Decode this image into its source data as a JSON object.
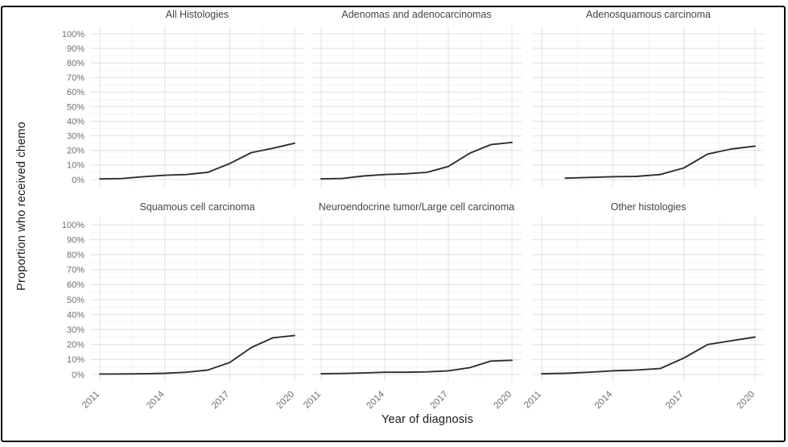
{
  "figure": {
    "description": "Faceted line chart of chemotherapy receipt over time by tumor histology",
    "background": "#ffffff",
    "border_color": "#0a0a0a"
  },
  "chart_data": {
    "type": "line",
    "layout": "facet grid, 2 rows x 3 columns, shared axes",
    "xlabel": "Year of diagnosis",
    "ylabel": "Proportion who received chemo",
    "x_ticks": [
      2011,
      2014,
      2017,
      2020
    ],
    "x_minor_ticks": [
      2012.5,
      2015.5,
      2018.5
    ],
    "xlim": [
      2011,
      2020
    ],
    "ylim": [
      0,
      100
    ],
    "y_tick_labels": [
      "0%",
      "10%",
      "20%",
      "30%",
      "40%",
      "50%",
      "60%",
      "70%",
      "80%",
      "90%",
      "100%"
    ],
    "y_tick_values": [
      0,
      10,
      20,
      30,
      40,
      50,
      60,
      70,
      80,
      90,
      100
    ],
    "grid": "major and minor gridlines, light gray on white, no panel border",
    "legend": "none",
    "line_color": "#2f2f2f",
    "facets": [
      {
        "title": "All Histologies",
        "years": [
          2011,
          2012,
          2013,
          2014,
          2015,
          2016,
          2017,
          2018,
          2019,
          2020
        ],
        "values": [
          0.5,
          0.7,
          2,
          3,
          3.5,
          5,
          11,
          18.5,
          21.5,
          25
        ]
      },
      {
        "title": "Adenomas and adenocarcinomas",
        "years": [
          2011,
          2012,
          2013,
          2014,
          2015,
          2016,
          2017,
          2018,
          2019,
          2020
        ],
        "values": [
          0.5,
          0.8,
          2.5,
          3.5,
          4,
          5,
          9,
          18,
          24,
          25.5
        ]
      },
      {
        "title": "Adenosquamous carcinoma",
        "years": [
          2012,
          2013,
          2014,
          2015,
          2016,
          2017,
          2018,
          2019,
          2020
        ],
        "values": [
          1,
          1.5,
          2,
          2.2,
          3.5,
          8,
          17.5,
          21,
          23
        ]
      },
      {
        "title": "Squamous cell carcinoma",
        "years": [
          2011,
          2012,
          2013,
          2014,
          2015,
          2016,
          2017,
          2018,
          2019,
          2020
        ],
        "values": [
          0.3,
          0.4,
          0.5,
          0.8,
          1.5,
          3,
          8,
          18,
          24.5,
          26
        ]
      },
      {
        "title": "Neuroendocrine tumor/Large cell carcinoma",
        "years": [
          2011,
          2012,
          2013,
          2014,
          2015,
          2016,
          2017,
          2018,
          2019,
          2020
        ],
        "values": [
          0.5,
          0.7,
          1,
          1.5,
          1.5,
          1.8,
          2.5,
          4.5,
          9,
          9.5
        ]
      },
      {
        "title": "Other histologies",
        "years": [
          2011,
          2012,
          2013,
          2014,
          2015,
          2016,
          2017,
          2018,
          2019,
          2020
        ],
        "values": [
          0.5,
          0.8,
          1.5,
          2.5,
          3,
          4,
          11,
          20,
          22.5,
          25
        ]
      }
    ],
    "colors": {
      "grid_major": "#e3e3e3",
      "grid_minor": "#f1f1f1",
      "tick_text": "#6e6e6e",
      "facet_title_text": "#454545",
      "axis_title_text": "#1a1a1a"
    }
  }
}
